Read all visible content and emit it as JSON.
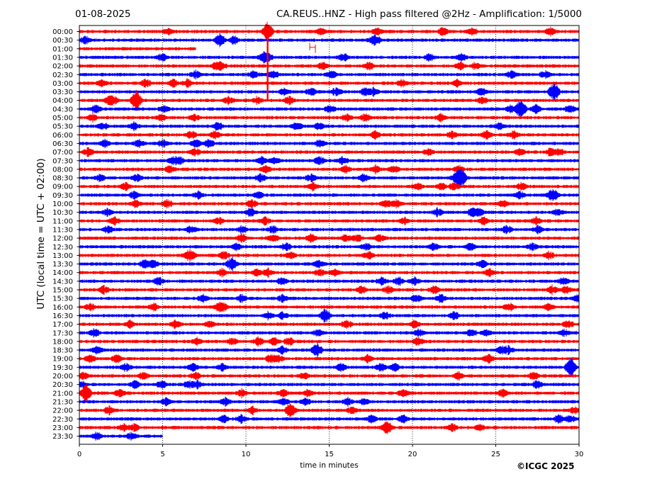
{
  "header": {
    "date": "01-08-2025",
    "title": "CA.REUS..HNZ - High pass filtered @2Hz - Amplification: 1/5000"
  },
  "credit": "©ICGC 2025",
  "colors": {
    "red": "#ff0000",
    "blue": "#0000ff",
    "axis": "#000000",
    "grid": "#000000"
  },
  "chart_data": {
    "type": "line",
    "title": "CA.REUS..HNZ - High pass filtered @2Hz - Amplification: 1/5000",
    "xlabel": "time in minutes",
    "ylabel": "UTC (local time = UTC + 02:00)",
    "xlim": [
      0,
      30
    ],
    "x_ticks": [
      0,
      5,
      10,
      15,
      20,
      25,
      30
    ],
    "grid": "vertical dotted lines at 5-minute intervals",
    "trace_colors_alternate": [
      "red",
      "blue"
    ],
    "rows": [
      "00:00",
      "00:30",
      "01:00",
      "01:30",
      "02:00",
      "02:30",
      "03:00",
      "03:30",
      "04:00",
      "04:30",
      "05:00",
      "05:30",
      "06:00",
      "06:30",
      "07:00",
      "07:30",
      "08:00",
      "08:30",
      "09:00",
      "09:30",
      "10:00",
      "10:30",
      "11:00",
      "11:30",
      "12:00",
      "12:30",
      "13:00",
      "13:30",
      "14:00",
      "14:30",
      "15:00",
      "15:30",
      "16:00",
      "16:30",
      "17:00",
      "17:30",
      "18:00",
      "18:30",
      "19:00",
      "19:30",
      "20:00",
      "20:30",
      "21:00",
      "21:30",
      "22:00",
      "22:30",
      "23:00",
      "23:30"
    ],
    "trace_end_minute": {
      "01:00": 7.0,
      "23:30": 5.0
    },
    "events": [
      {
        "row": "00:00",
        "minute": 11.3,
        "note": "large spike spanning rows 00:00 to 04:00"
      },
      {
        "row": "01:00",
        "minute": 14.0,
        "note": "step offset"
      },
      {
        "row": "03:30",
        "minute": 28.5,
        "note": "burst"
      },
      {
        "row": "04:00",
        "minute": 3.4,
        "note": "burst"
      },
      {
        "row": "04:30",
        "minute": 26.5,
        "note": "burst"
      },
      {
        "row": "08:30",
        "minute": 22.9,
        "note": "burst"
      },
      {
        "row": "21:00",
        "minute": 0.4,
        "note": "burst"
      },
      {
        "row": "19:30",
        "minute": 29.5,
        "note": "burst"
      }
    ]
  }
}
